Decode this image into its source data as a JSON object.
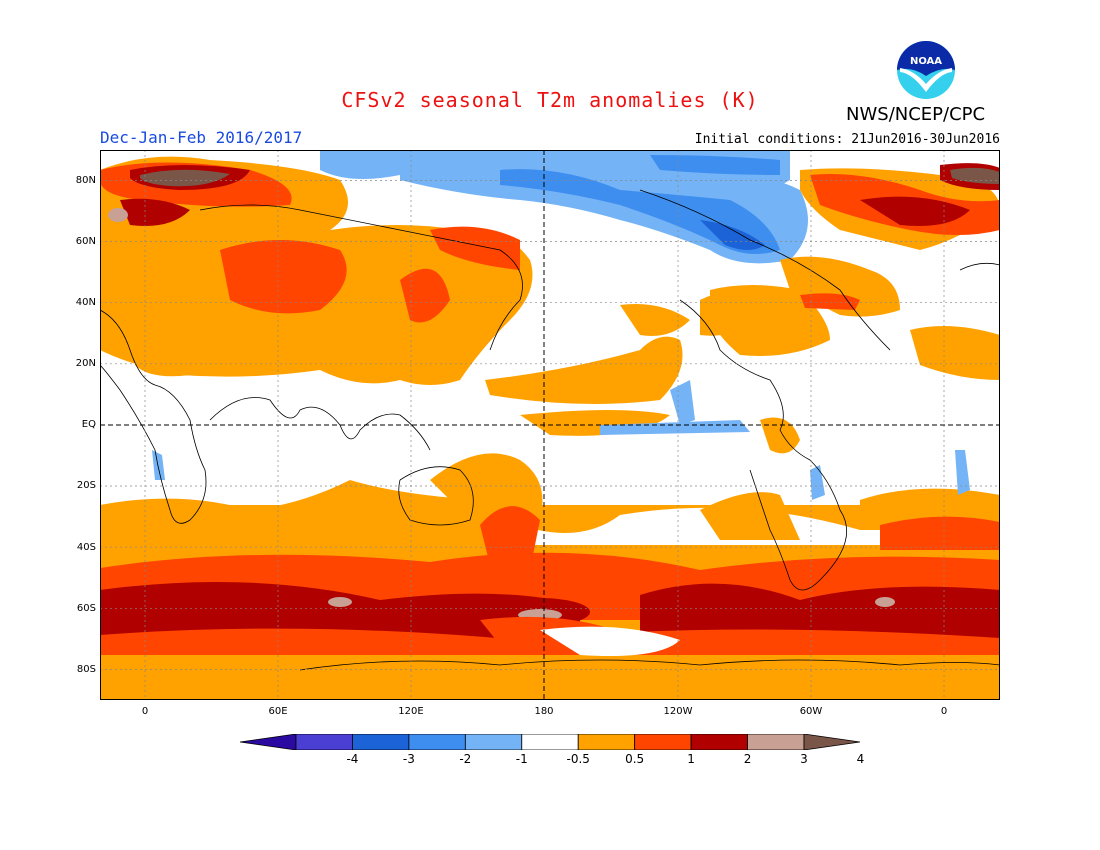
{
  "header": {
    "title": "CFSv2 seasonal T2m anomalies (K)",
    "season": "Dec-Jan-Feb 2016/2017",
    "initial_conditions": "Initial conditions: 21Jun2016-30Jun2016",
    "agency": "NWS/NCEP/CPC",
    "logo_text": "NOAA"
  },
  "map": {
    "lat_labels": [
      "80N",
      "60N",
      "40N",
      "20N",
      "EQ",
      "20S",
      "40S",
      "60S",
      "80S"
    ],
    "lon_labels": [
      "0",
      "60E",
      "120E",
      "180",
      "120W",
      "60W",
      "0"
    ]
  },
  "colorbar": {
    "labels": [
      "-4",
      "-3",
      "-2",
      "-1",
      "-0.5",
      "0.5",
      "1",
      "2",
      "3",
      "4"
    ],
    "colors": [
      "#2a0aa0",
      "#4b3ed3",
      "#1c63d8",
      "#3e8ef0",
      "#74b4f6",
      "#ffffff",
      "#ffa200",
      "#ff4500",
      "#b00000",
      "#c8a094",
      "#7a5648"
    ]
  }
}
